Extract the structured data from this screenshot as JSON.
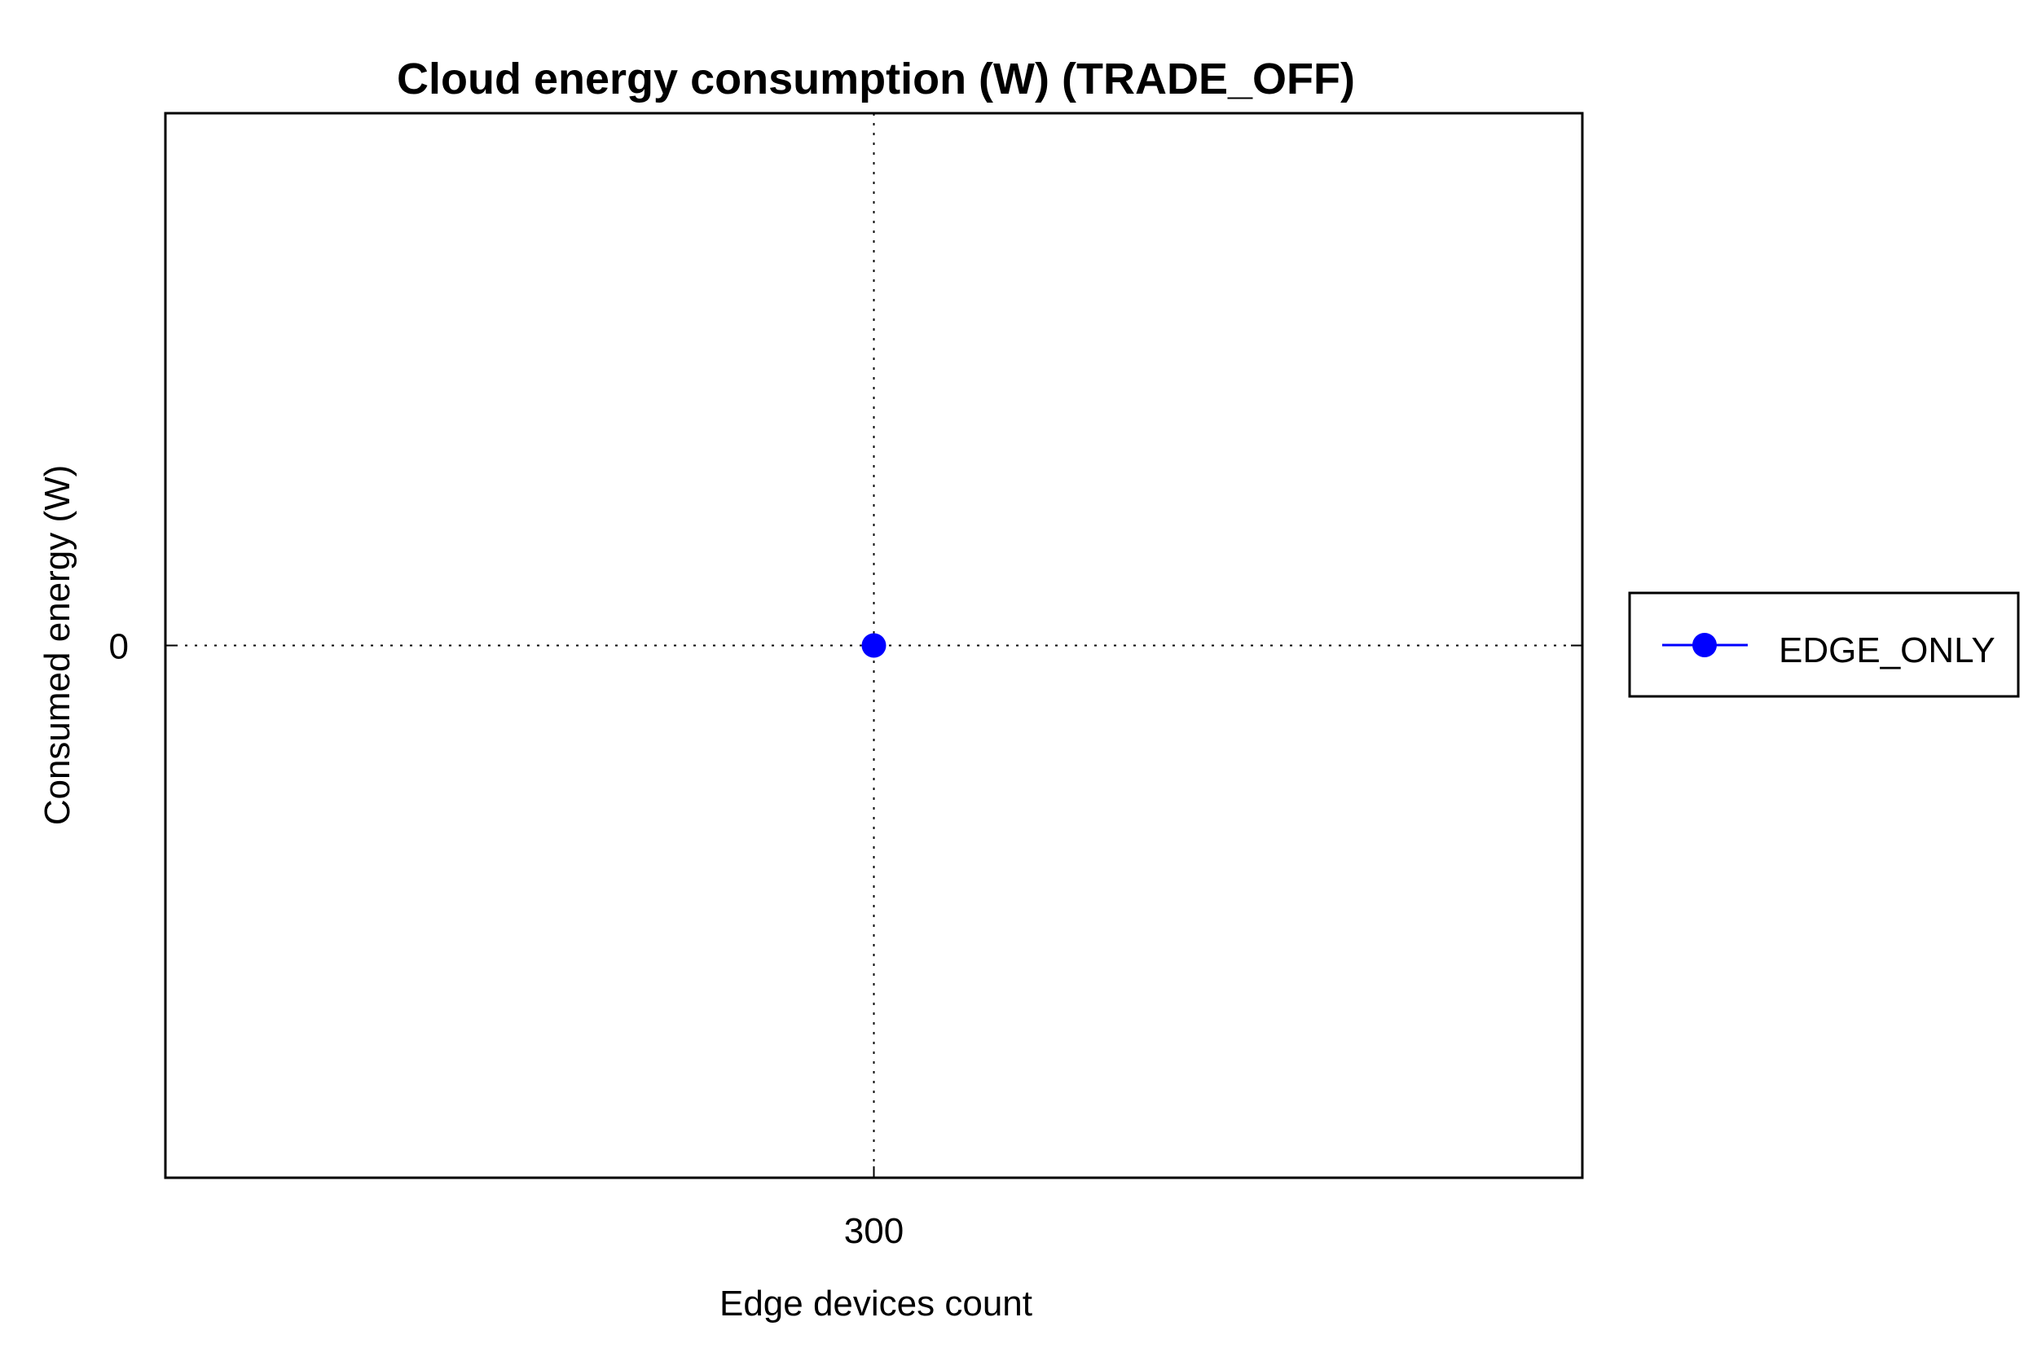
{
  "chart_data": {
    "type": "line",
    "title": "Cloud energy consumption (W) (TRADE_OFF)",
    "xlabel": "Edge devices count",
    "ylabel": "Consumed energy (W)",
    "x_ticks": [
      "300"
    ],
    "y_ticks": [
      "0"
    ],
    "xlim": [
      299,
      301
    ],
    "ylim": [
      -1,
      1
    ],
    "grid": true,
    "legend_position": "outside-right",
    "series": [
      {
        "name": "EDGE_ONLY",
        "color": "#0000ff",
        "marker": "circle",
        "x": [
          300
        ],
        "y": [
          0
        ]
      }
    ]
  }
}
